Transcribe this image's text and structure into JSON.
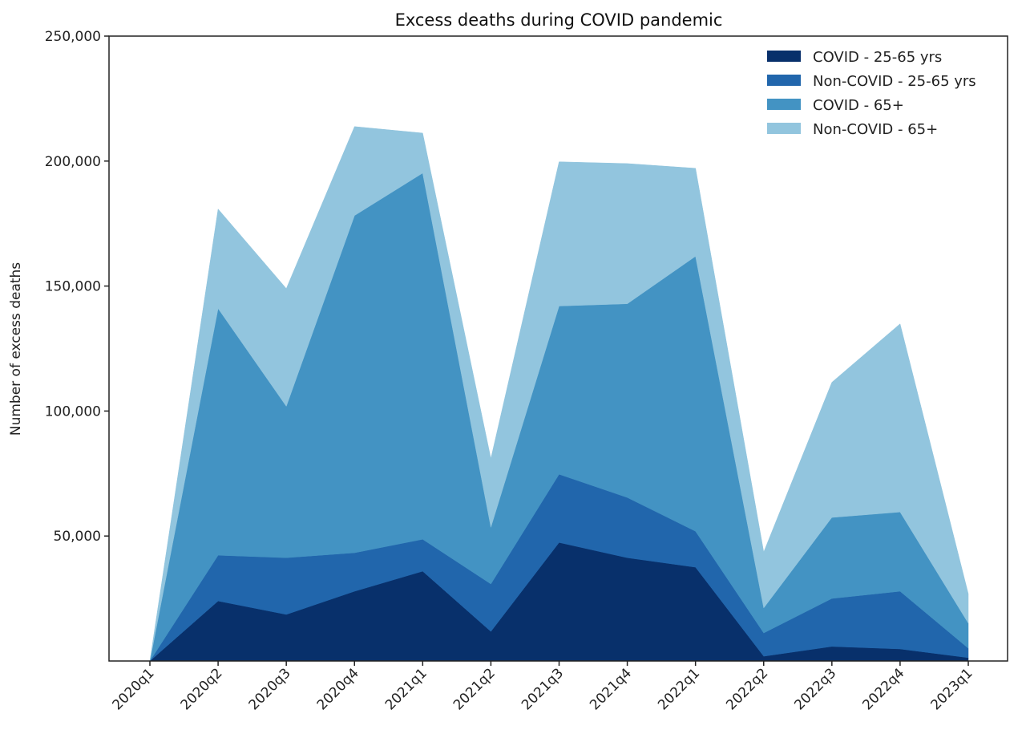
{
  "chart_data": {
    "type": "area",
    "stacked": true,
    "title": "Excess deaths during COVID pandemic",
    "xlabel": "",
    "ylabel": "Number of excess deaths",
    "x": [
      "2020q1",
      "2020q2",
      "2020q3",
      "2020q4",
      "2021q1",
      "2021q2",
      "2021q3",
      "2021q4",
      "2022q1",
      "2022q2",
      "2022q3",
      "2022q4",
      "2023q1"
    ],
    "ylim": [
      0,
      250000
    ],
    "yticks": [
      50000,
      100000,
      150000,
      200000,
      250000
    ],
    "ytick_labels": [
      "50,000",
      "100,000",
      "150,000",
      "200,000",
      "250,000"
    ],
    "grid": false,
    "legend_position": "top-right",
    "series": [
      {
        "name": "COVID - 25-65 yrs",
        "color": "#08306b",
        "values": [
          0,
          24000,
          18600,
          27900,
          35900,
          11800,
          47400,
          41300,
          37500,
          1900,
          5800,
          4800,
          1300
        ]
      },
      {
        "name": "Non-COVID - 25-65 yrs",
        "color": "#2166ac",
        "values": [
          0,
          18300,
          22700,
          15400,
          12800,
          19000,
          27300,
          24100,
          14400,
          9300,
          19200,
          23100,
          3800
        ]
      },
      {
        "name": "COVID - 65+",
        "color": "#4393c3",
        "values": [
          0,
          98700,
          60600,
          134900,
          146500,
          22700,
          67300,
          77500,
          110000,
          10000,
          32400,
          31700,
          10000
        ]
      },
      {
        "name": "Non-COVID - 65+",
        "color": "#92c5de",
        "values": [
          0,
          39800,
          47100,
          35600,
          16000,
          27500,
          57700,
          56100,
          35200,
          22400,
          54100,
          75300,
          11800
        ]
      }
    ]
  }
}
